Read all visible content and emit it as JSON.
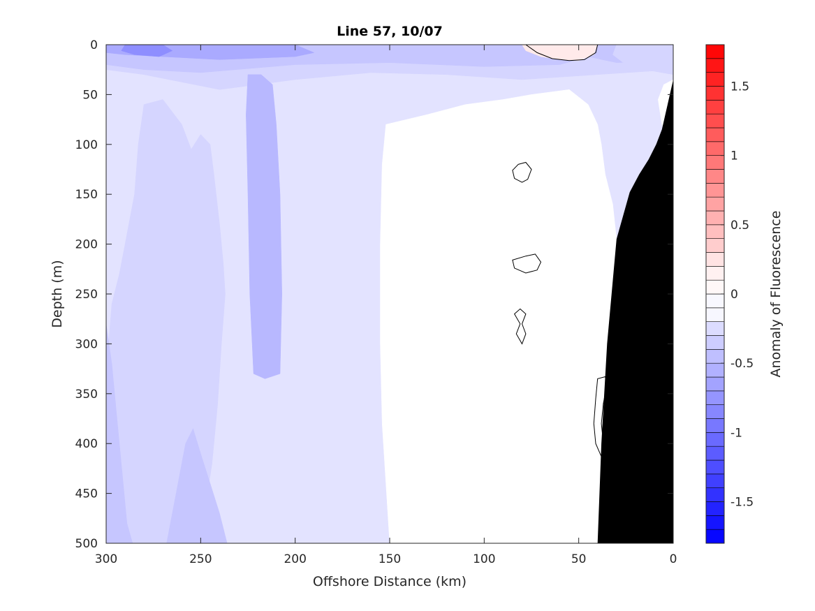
{
  "chart_data": {
    "type": "heatmap",
    "title": "Line 57, 10/07",
    "xlabel": "Offshore Distance (km)",
    "ylabel": "Depth (m)",
    "colorbar_label": "Anomaly of Fluorescence",
    "xlim": [
      300,
      0
    ],
    "ylim": [
      500,
      0
    ],
    "x_reversed": true,
    "y_reversed": true,
    "x_ticks": [
      "300",
      "250",
      "200",
      "150",
      "100",
      "50",
      "0"
    ],
    "x_tick_values": [
      300,
      250,
      200,
      150,
      100,
      50,
      0
    ],
    "y_ticks": [
      "0",
      "50",
      "100",
      "150",
      "200",
      "250",
      "300",
      "350",
      "400",
      "450",
      "500"
    ],
    "y_tick_values": [
      0,
      50,
      100,
      150,
      200,
      250,
      300,
      350,
      400,
      450,
      500
    ],
    "color_range": [
      -1.8,
      1.8
    ],
    "colorbar_levels": 36,
    "colorbar_ticks": [
      "1.5",
      "1",
      "0.5",
      "0",
      "-0.5",
      "-1",
      "-1.5"
    ],
    "colorbar_tick_values": [
      1.5,
      1,
      0.5,
      0,
      -0.5,
      -1,
      -1.5
    ],
    "colormap": {
      "low": "#0000ff",
      "mid": "#ffffff",
      "high": "#ff0000"
    },
    "grid": false,
    "bathymetry_color": "#000000",
    "bathymetry": [
      [
        0,
        35
      ],
      [
        3,
        60
      ],
      [
        6,
        85
      ],
      [
        9,
        100
      ],
      [
        13,
        115
      ],
      [
        18,
        130
      ],
      [
        23,
        148
      ],
      [
        30,
        195
      ],
      [
        35,
        300
      ],
      [
        38,
        400
      ],
      [
        40,
        500
      ],
      [
        0,
        500
      ]
    ],
    "regions": [
      {
        "value": -0.2,
        "points": [
          [
            300,
            0
          ],
          [
            0,
            0
          ],
          [
            0,
            500
          ],
          [
            300,
            500
          ]
        ]
      },
      {
        "value": -0.3,
        "points": [
          [
            300,
            500
          ],
          [
            300,
            330
          ],
          [
            297,
            260
          ],
          [
            293,
            230
          ],
          [
            290,
            200
          ],
          [
            285,
            150
          ],
          [
            283,
            100
          ],
          [
            280,
            60
          ],
          [
            270,
            55
          ],
          [
            260,
            80
          ],
          [
            255,
            105
          ],
          [
            250,
            90
          ],
          [
            245,
            100
          ],
          [
            243,
            130
          ],
          [
            240,
            180
          ],
          [
            238,
            220
          ],
          [
            237,
            250
          ],
          [
            239,
            300
          ],
          [
            241,
            360
          ],
          [
            244,
            420
          ],
          [
            248,
            470
          ],
          [
            250,
            500
          ]
        ]
      },
      {
        "value": -0.3,
        "points": [
          [
            300,
            0
          ],
          [
            0,
            0
          ],
          [
            0,
            25
          ],
          [
            40,
            30
          ],
          [
            80,
            35
          ],
          [
            120,
            30
          ],
          [
            160,
            28
          ],
          [
            200,
            35
          ],
          [
            240,
            45
          ],
          [
            280,
            30
          ],
          [
            300,
            25
          ]
        ]
      },
      {
        "value": -0.4,
        "points": [
          [
            300,
            500
          ],
          [
            300,
            280
          ],
          [
            297,
            320
          ],
          [
            294,
            380
          ],
          [
            291,
            440
          ],
          [
            289,
            480
          ],
          [
            286,
            500
          ]
        ]
      },
      {
        "value": -0.4,
        "points": [
          [
            236,
            500
          ],
          [
            240,
            470
          ],
          [
            245,
            440
          ],
          [
            250,
            410
          ],
          [
            254,
            385
          ],
          [
            258,
            400
          ],
          [
            262,
            440
          ],
          [
            266,
            480
          ],
          [
            268,
            500
          ]
        ]
      },
      {
        "value": -0.4,
        "points": [
          [
            300,
            0
          ],
          [
            0,
            0
          ],
          [
            0,
            16
          ],
          [
            30,
            18
          ],
          [
            45,
            12
          ],
          [
            60,
            20
          ],
          [
            100,
            22
          ],
          [
            150,
            18
          ],
          [
            200,
            20
          ],
          [
            250,
            28
          ],
          [
            280,
            25
          ],
          [
            300,
            20
          ]
        ]
      },
      {
        "value": -0.5,
        "points": [
          [
            225,
            30
          ],
          [
            218,
            30
          ],
          [
            212,
            40
          ],
          [
            210,
            80
          ],
          [
            208,
            150
          ],
          [
            207,
            250
          ],
          [
            208,
            330
          ],
          [
            216,
            335
          ],
          [
            222,
            330
          ],
          [
            224,
            250
          ],
          [
            225,
            150
          ],
          [
            226,
            70
          ]
        ]
      },
      {
        "value": -0.6,
        "points": [
          [
            300,
            0
          ],
          [
            200,
            0
          ],
          [
            190,
            8
          ],
          [
            200,
            12
          ],
          [
            240,
            15
          ],
          [
            270,
            12
          ],
          [
            290,
            10
          ],
          [
            300,
            8
          ]
        ]
      },
      {
        "value": -0.8,
        "points": [
          [
            290,
            0
          ],
          [
            270,
            0
          ],
          [
            265,
            6
          ],
          [
            272,
            12
          ],
          [
            285,
            10
          ],
          [
            292,
            6
          ]
        ]
      },
      {
        "value": -0.3,
        "points": [
          [
            30,
            0
          ],
          [
            0,
            0
          ],
          [
            0,
            30
          ],
          [
            15,
            25
          ],
          [
            25,
            20
          ],
          [
            32,
            10
          ]
        ]
      },
      {
        "value": 0.0,
        "points": [
          [
            150,
            500
          ],
          [
            152,
            440
          ],
          [
            154,
            380
          ],
          [
            155,
            300
          ],
          [
            155,
            200
          ],
          [
            154,
            120
          ],
          [
            152,
            80
          ],
          [
            130,
            70
          ],
          [
            110,
            60
          ],
          [
            90,
            55
          ],
          [
            75,
            50
          ],
          [
            55,
            45
          ],
          [
            45,
            60
          ],
          [
            40,
            80
          ],
          [
            38,
            100
          ],
          [
            36,
            130
          ],
          [
            32,
            160
          ],
          [
            30,
            195
          ],
          [
            30,
            250
          ],
          [
            31,
            330
          ],
          [
            33,
            400
          ],
          [
            35,
            460
          ],
          [
            38,
            500
          ]
        ]
      },
      {
        "value": 0.0,
        "points": [
          [
            0,
            35
          ],
          [
            5,
            40
          ],
          [
            8,
            55
          ],
          [
            6,
            80
          ],
          [
            3,
            90
          ],
          [
            0,
            90
          ]
        ]
      },
      {
        "value": 0.15,
        "points": [
          [
            80,
            0
          ],
          [
            40,
            0
          ],
          [
            42,
            10
          ],
          [
            50,
            16
          ],
          [
            60,
            15
          ],
          [
            70,
            12
          ],
          [
            78,
            6
          ]
        ]
      }
    ],
    "contours": [
      {
        "value": 0.0,
        "points": [
          [
            78,
            0
          ],
          [
            72,
            8
          ],
          [
            64,
            14
          ],
          [
            55,
            16
          ],
          [
            47,
            15
          ],
          [
            41,
            8
          ],
          [
            40,
            0
          ]
        ]
      },
      {
        "value": 0.0,
        "points": [
          [
            82,
            120
          ],
          [
            78,
            118
          ],
          [
            75,
            125
          ],
          [
            77,
            135
          ],
          [
            80,
            138
          ],
          [
            84,
            134
          ],
          [
            85,
            126
          ]
        ]
      },
      {
        "value": 0.0,
        "points": [
          [
            78,
            212
          ],
          [
            73,
            210
          ],
          [
            70,
            218
          ],
          [
            72,
            226
          ],
          [
            78,
            229
          ],
          [
            84,
            224
          ],
          [
            85,
            216
          ]
        ]
      },
      {
        "value": 0.0,
        "points": [
          [
            81,
            265
          ],
          [
            78,
            270
          ],
          [
            80,
            280
          ],
          [
            78,
            290
          ],
          [
            80,
            300
          ],
          [
            83,
            290
          ],
          [
            81,
            280
          ],
          [
            84,
            270
          ]
        ]
      },
      {
        "value": 0.0,
        "points": [
          [
            36,
            333
          ],
          [
            35,
            340
          ],
          [
            37,
            360
          ],
          [
            38,
            380
          ],
          [
            37,
            400
          ],
          [
            35,
            412
          ],
          [
            38,
            413
          ],
          [
            41,
            400
          ],
          [
            42,
            380
          ],
          [
            41,
            355
          ],
          [
            40,
            335
          ]
        ]
      }
    ]
  }
}
